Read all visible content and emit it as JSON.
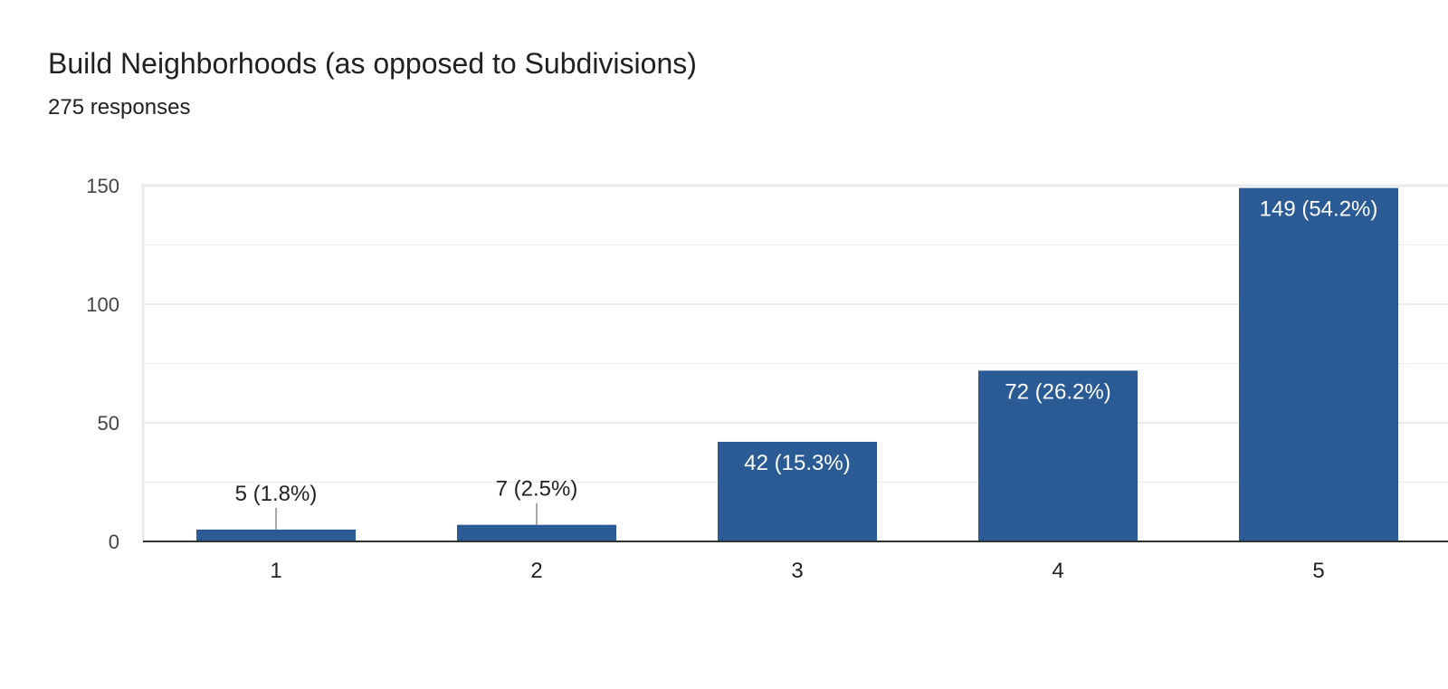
{
  "header": {
    "title": "Build Neighborhoods (as opposed to Subdivisions)",
    "subtitle": "275 responses"
  },
  "colors": {
    "bar": "#2a5b95",
    "grid": "#ebebeb",
    "axis": "#333333",
    "inside_label": "#ffffff",
    "outside_label": "#222222",
    "leader": "#8a8a8a"
  },
  "chart_data": {
    "type": "bar",
    "categories": [
      "1",
      "2",
      "3",
      "4",
      "5"
    ],
    "values": [
      5,
      7,
      42,
      72,
      149
    ],
    "data_labels": [
      "5 (1.8%)",
      "7 (2.5%)",
      "42 (15.3%)",
      "72 (26.2%)",
      "149 (54.2%)"
    ],
    "y_ticks": [
      0,
      50,
      100,
      150
    ],
    "ylim": [
      0,
      150
    ],
    "grid": true,
    "minor_grid": true
  }
}
